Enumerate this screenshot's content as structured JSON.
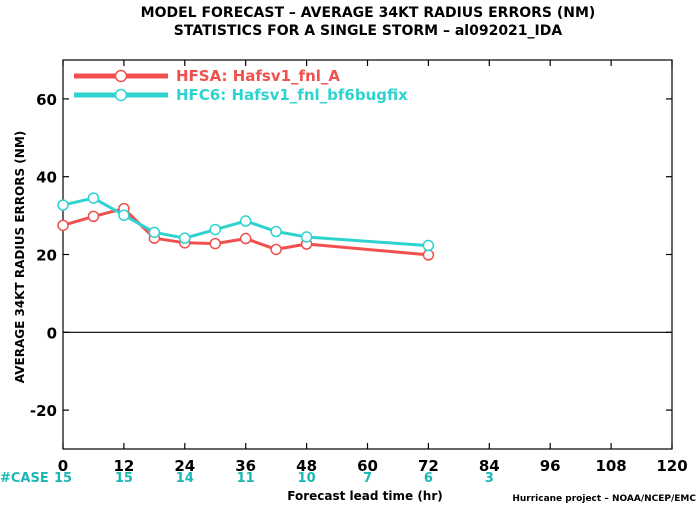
{
  "chart_data": {
    "type": "line",
    "title_lines": [
      "MODEL FORECAST – AVERAGE 34KT RADIUS ERRORS (NM)",
      "STATISTICS FOR A SINGLE STORM – al092021_IDA"
    ],
    "xlabel": "Forecast lead time (hr)",
    "ylabel": "AVERAGE 34KT RADIUS ERRORS (NM)",
    "xlim": [
      0,
      120
    ],
    "ylim": [
      -30,
      70
    ],
    "xticks": [
      0,
      12,
      24,
      36,
      48,
      60,
      72,
      84,
      96,
      108,
      120
    ],
    "yticks": [
      -20,
      0,
      20,
      40,
      60
    ],
    "grid": false,
    "zero_line": true,
    "legend_position": "top-left",
    "series": [
      {
        "name": "HFSA: Hafsv1_fnl_A",
        "color": "#f0504e",
        "x": [
          0,
          6,
          12,
          18,
          24,
          30,
          36,
          42,
          48,
          72
        ],
        "y": [
          27.5,
          29.8,
          31.8,
          24.2,
          23.0,
          22.8,
          24.1,
          21.3,
          22.7,
          19.9
        ]
      },
      {
        "name": "HFC6: Hafsv1_fnl_bf6bugfix",
        "color": "#2ed3cf",
        "x": [
          0,
          6,
          12,
          18,
          24,
          30,
          36,
          42,
          48,
          72
        ],
        "y": [
          32.7,
          34.5,
          30.1,
          25.7,
          24.2,
          26.4,
          28.6,
          25.9,
          24.5,
          22.3
        ]
      }
    ],
    "case_counts": {
      "label": "#CASE",
      "x": [
        0,
        12,
        24,
        36,
        48,
        60,
        72,
        84
      ],
      "values": [
        "15",
        "15",
        "14",
        "11",
        "10",
        "7",
        "6",
        "3"
      ],
      "color": "#1ab7b4"
    }
  },
  "credit": "Hurricane project – NOAA/NCEP/EMC"
}
